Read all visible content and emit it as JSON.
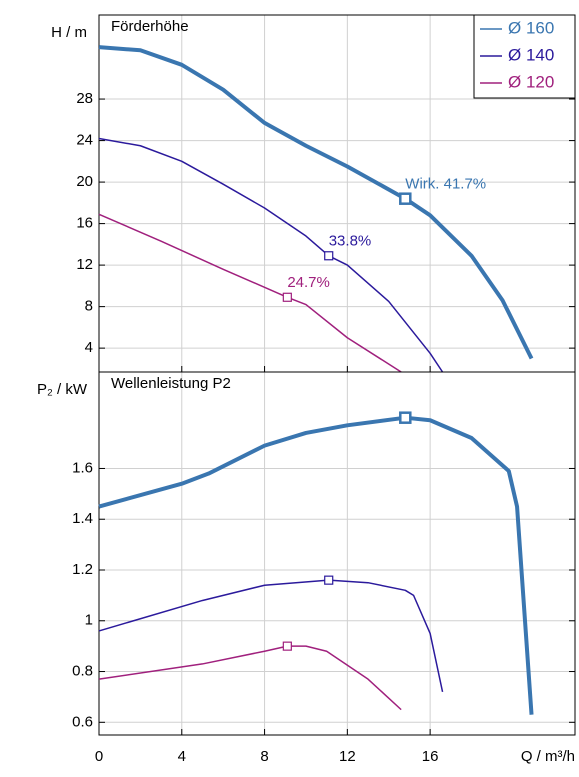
{
  "chart_data": [
    {
      "type": "line",
      "title": "Förderhöhe",
      "y_label": "H / m",
      "xlim": [
        0,
        23
      ],
      "xticks": [
        0,
        4,
        8,
        12,
        16
      ],
      "ylim": [
        1.7,
        36.1
      ],
      "yticks": [
        4,
        8,
        12,
        16,
        20,
        24,
        28
      ],
      "grid": true,
      "legend": "upper right",
      "series": [
        {
          "name": "Ø 160",
          "color": "#3a76b0",
          "width": 4,
          "x": [
            0,
            2,
            4,
            6,
            8,
            10,
            12,
            14.8,
            16,
            18,
            19.5,
            20.9
          ],
          "values": [
            33.0,
            32.7,
            31.3,
            28.9,
            25.7,
            23.5,
            21.5,
            18.4,
            16.8,
            12.9,
            8.6,
            3.0
          ],
          "marker": [
            14.8,
            18.4
          ],
          "label": "Wirk.  41.7%"
        },
        {
          "name": "Ø 140",
          "color": "#2b1a9c",
          "width": 1.5,
          "x": [
            0,
            2,
            4,
            6,
            8,
            10,
            11.1,
            12,
            14,
            16,
            16.6
          ],
          "values": [
            24.2,
            23.5,
            22.0,
            19.8,
            17.5,
            14.8,
            12.9,
            12.0,
            8.5,
            3.5,
            1.7
          ],
          "marker": [
            11.1,
            12.9
          ],
          "label": "33.8%"
        },
        {
          "name": "Ø 120",
          "color": "#a0207d",
          "width": 1.5,
          "x": [
            0,
            3,
            6,
            9.1,
            10,
            12,
            14.6
          ],
          "values": [
            16.9,
            14.3,
            11.6,
            8.9,
            8.2,
            5.0,
            1.7
          ],
          "marker": [
            9.1,
            8.9
          ],
          "label": "24.7%"
        }
      ]
    },
    {
      "type": "line",
      "title": "Wellenleistung P2",
      "y_label": "P₂ / kW",
      "x_label": "Q / m³/h",
      "xlim": [
        0,
        23
      ],
      "xticks": [
        0,
        4,
        8,
        12,
        16
      ],
      "ylim": [
        0.55,
        1.98
      ],
      "yticks": [
        0.6,
        0.8,
        1,
        1.2,
        1.4,
        1.6
      ],
      "grid": true,
      "series": [
        {
          "name": "Ø 160",
          "color": "#3a76b0",
          "width": 4,
          "x": [
            0,
            4,
            5.3,
            8,
            10,
            12,
            14.8,
            16,
            18,
            19.8,
            20.2,
            20.9
          ],
          "values": [
            1.45,
            1.54,
            1.58,
            1.69,
            1.74,
            1.77,
            1.8,
            1.79,
            1.72,
            1.59,
            1.45,
            0.63
          ],
          "marker": [
            14.8,
            1.8
          ]
        },
        {
          "name": "Ø 140",
          "color": "#2b1a9c",
          "width": 1.5,
          "x": [
            0,
            5,
            8,
            11.1,
            13,
            14.8,
            15.2,
            16,
            16.6
          ],
          "values": [
            0.96,
            1.08,
            1.14,
            1.16,
            1.15,
            1.12,
            1.1,
            0.95,
            0.72
          ],
          "marker": [
            11.1,
            1.16
          ]
        },
        {
          "name": "Ø 120",
          "color": "#a0207d",
          "width": 1.5,
          "x": [
            0,
            5,
            8,
            9.1,
            10,
            11,
            13,
            14.6
          ],
          "values": [
            0.77,
            0.83,
            0.88,
            0.9,
            0.9,
            0.88,
            0.77,
            0.65
          ],
          "marker": [
            9.1,
            0.9
          ]
        }
      ]
    }
  ]
}
